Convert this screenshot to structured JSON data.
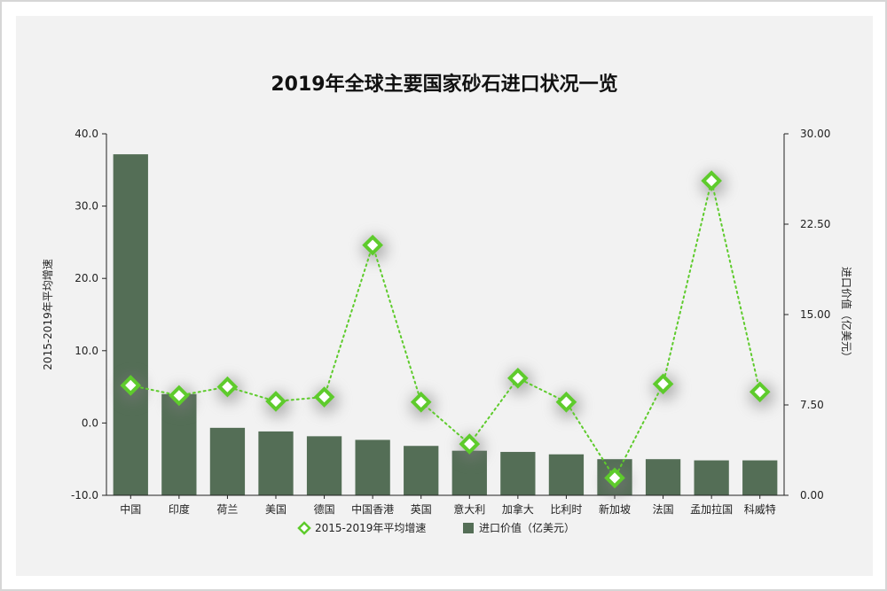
{
  "chart_data": {
    "type": "bar",
    "title": "2019年全球主要国家砂石进口状况一览",
    "categories": [
      "中国",
      "印度",
      "荷兰",
      "美国",
      "德国",
      "中国香港",
      "英国",
      "意大利",
      "加拿大",
      "比利时",
      "新加坡",
      "法国",
      "孟加拉国",
      "科威特"
    ],
    "series": [
      {
        "name": "进口价值（亿美元）",
        "type": "bar",
        "axis": "right",
        "color": "#546e56",
        "values": [
          28.3,
          8.4,
          5.6,
          5.3,
          4.9,
          4.6,
          4.1,
          3.7,
          3.6,
          3.4,
          3.0,
          3.0,
          2.9,
          2.9
        ]
      },
      {
        "name": "2015-2019年平均增速",
        "type": "line",
        "axis": "left",
        "color": "#5ecb2c",
        "values": [
          5.2,
          3.8,
          5.0,
          3.0,
          3.6,
          24.6,
          2.9,
          -2.9,
          6.2,
          2.9,
          -7.6,
          5.4,
          33.5,
          4.3
        ]
      }
    ],
    "y_left": {
      "label": "2015-2019年平均增速",
      "ylim": [
        -10,
        40
      ],
      "ticks": [
        "-10.0",
        "0.0",
        "10.0",
        "20.0",
        "30.0",
        "40.0"
      ]
    },
    "y_right": {
      "label": "进口价值（亿美元）",
      "ylim": [
        0,
        30
      ],
      "ticks": [
        "0.00",
        "7.50",
        "15.00",
        "22.50",
        "30.00"
      ]
    },
    "legend": {
      "position": "bottom",
      "items": [
        "2015-2019年平均增速",
        "进口价值（亿美元）"
      ]
    },
    "grid": false
  }
}
